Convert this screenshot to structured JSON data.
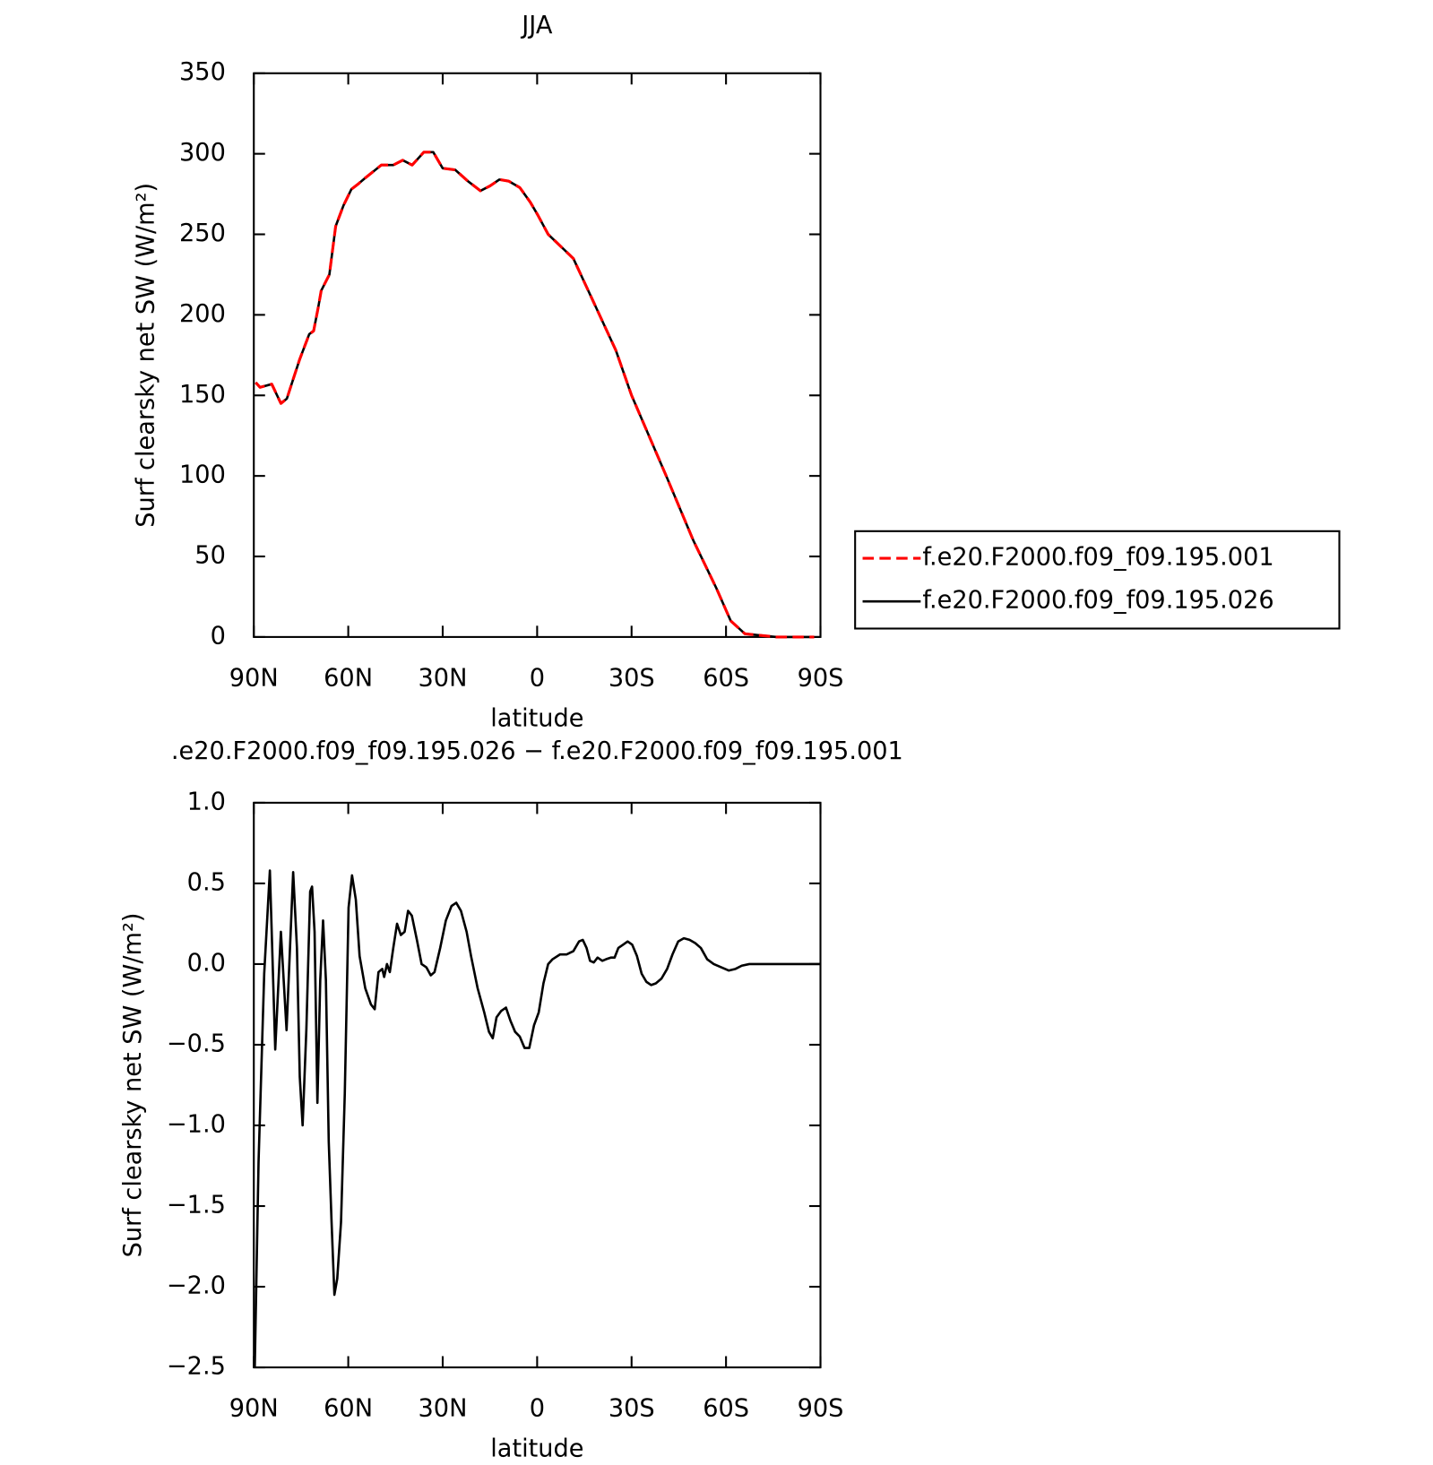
{
  "chart_data": [
    {
      "type": "line",
      "title": "JJA",
      "xlabel": "latitude",
      "ylabel": "Surf clearsky net SW (W/m²)",
      "xlim": [
        90,
        -90
      ],
      "xticks": [
        {
          "value": 90,
          "label": "90N"
        },
        {
          "value": 60,
          "label": "60N"
        },
        {
          "value": 30,
          "label": "30N"
        },
        0,
        {
          "value": -30,
          "label": "30S"
        },
        {
          "value": -60,
          "label": "60S"
        },
        {
          "value": -90,
          "label": "90S"
        }
      ],
      "ylim": [
        0,
        350
      ],
      "yticks": [
        0,
        50,
        100,
        150,
        200,
        250,
        300,
        350
      ],
      "legend": "right",
      "x": [
        89.4,
        88,
        84.3,
        82.6,
        81.4,
        79.5,
        77.5,
        75.5,
        72.4,
        71,
        69.5,
        68.6,
        66,
        64,
        61.5,
        59,
        57,
        54.6,
        49.5,
        45.7,
        42.7,
        39.7,
        36,
        33,
        30,
        26,
        22,
        18,
        15,
        12,
        9,
        5.5,
        2.2,
        -0.2,
        -3.5,
        -11.5,
        -19.8,
        -25,
        -30,
        -41,
        -49.6,
        -57,
        -61.5,
        -66,
        -76,
        -88
      ],
      "series": [
        {
          "name": "f.e20.F2000.f09_f09.195.001",
          "color": "#ff0000",
          "line_style": "dashed",
          "values": [
            158,
            155,
            157,
            150,
            145,
            148,
            160,
            172,
            188,
            190,
            205,
            215,
            225,
            255,
            268,
            278,
            281,
            285,
            293,
            293,
            296,
            293,
            301,
            301,
            291,
            290,
            283,
            277,
            280,
            284,
            283,
            279,
            270,
            262,
            250,
            235,
            200,
            178,
            150,
            100,
            60,
            30,
            10,
            2,
            0,
            0
          ]
        },
        {
          "name": "f.e20.F2000.f09_f09.195.026",
          "color": "#000000",
          "line_style": "solid",
          "values": [
            158,
            155,
            157,
            150,
            145,
            148,
            160,
            172,
            188,
            190,
            205,
            215,
            225,
            255,
            268,
            278,
            281,
            285,
            293,
            293,
            296,
            293,
            301,
            301,
            291,
            290,
            283,
            277,
            280,
            284,
            283,
            279,
            270,
            262,
            250,
            235,
            200,
            178,
            150,
            100,
            60,
            30,
            10,
            2,
            0,
            0
          ]
        }
      ]
    },
    {
      "type": "line",
      "title": ".e20.F2000.f09_f09.195.026 − f.e20.F2000.f09_f09.195.001",
      "xlabel": "latitude",
      "ylabel": "Surf clearsky net SW (W/m²)",
      "xlim": [
        90,
        -90
      ],
      "xticks": [
        {
          "value": 90,
          "label": "90N"
        },
        {
          "value": 60,
          "label": "60N"
        },
        {
          "value": 30,
          "label": "30N"
        },
        0,
        {
          "value": -30,
          "label": "30S"
        },
        {
          "value": -60,
          "label": "60S"
        },
        {
          "value": -90,
          "label": "90S"
        }
      ],
      "ylim": [
        -2.5,
        1.0
      ],
      "yticks": [
        {
          "value": -2.5,
          "label": "−2.5"
        },
        {
          "value": -2.0,
          "label": "−2.0"
        },
        {
          "value": -1.5,
          "label": "−1.5"
        },
        {
          "value": -1.0,
          "label": "−1.0"
        },
        {
          "value": -0.5,
          "label": "−0.5"
        },
        {
          "value": 0,
          "label": "0.0"
        },
        {
          "value": 0.5,
          "label": "0.5"
        },
        {
          "value": 1.0,
          "label": "1.0"
        }
      ],
      "x": [
        89.7,
        88.5,
        86.7,
        84.9,
        83.2,
        81.4,
        79.6,
        77.5,
        76.3,
        75.4,
        74.5,
        73.3,
        72.1,
        71.5,
        70.7,
        69.8,
        68.9,
        68,
        67.1,
        66.2,
        65.3,
        64.4,
        63.5,
        62.3,
        61.1,
        59.9,
        58.8,
        57.6,
        56.4,
        54.6,
        52.8,
        51.6,
        50.4,
        49.2,
        48.6,
        47.7,
        46.8,
        45.7,
        44.5,
        43.3,
        42.1,
        41,
        39.8,
        38.2,
        36.7,
        35.2,
        33.8,
        32.6,
        30.8,
        29,
        27.2,
        25.7,
        24.2,
        22.4,
        21,
        18.9,
        16.8,
        15.3,
        14.1,
        12.9,
        11.4,
        9.9,
        8.5,
        7,
        5.5,
        4,
        2.5,
        1,
        -0.5,
        -2,
        -3.5,
        -4.9,
        -7.3,
        -9.4,
        -11.5,
        -13.3,
        -14.5,
        -15.7,
        -16.8,
        -18,
        -19.2,
        -20.7,
        -21.9,
        -23.4,
        -24.6,
        -25.8,
        -27.3,
        -28.75,
        -30.2,
        -31.7,
        -33.2,
        -34.7,
        -36.2,
        -37.7,
        -39.5,
        -41.3,
        -43,
        -44.8,
        -46.6,
        -48.4,
        -50.2,
        -52,
        -54,
        -56.1,
        -58.5,
        -60.9,
        -63,
        -65,
        -67.4,
        -73.4,
        -82.3,
        -90
      ],
      "series": [
        {
          "color": "#000000",
          "line_style": "solid",
          "values": [
            -2.5,
            -1.23,
            -0.06,
            0.58,
            -0.53,
            0.2,
            -0.41,
            0.57,
            0.1,
            -0.7,
            -1.0,
            -0.4,
            0.45,
            0.48,
            0.2,
            -0.86,
            -0.1,
            0.27,
            -0.1,
            -1.1,
            -1.6,
            -2.05,
            -1.95,
            -1.6,
            -0.8,
            0.35,
            0.55,
            0.4,
            0.05,
            -0.15,
            -0.25,
            -0.28,
            -0.05,
            -0.03,
            -0.08,
            0.0,
            -0.05,
            0.1,
            0.25,
            0.18,
            0.2,
            0.33,
            0.3,
            0.15,
            0.0,
            -0.02,
            -0.07,
            -0.05,
            0.1,
            0.27,
            0.36,
            0.38,
            0.33,
            0.2,
            0.05,
            -0.15,
            -0.3,
            -0.42,
            -0.46,
            -0.33,
            -0.29,
            -0.27,
            -0.35,
            -0.42,
            -0.45,
            -0.52,
            -0.52,
            -0.38,
            -0.3,
            -0.12,
            0.0,
            0.03,
            0.06,
            0.06,
            0.08,
            0.14,
            0.15,
            0.1,
            0.02,
            0.01,
            0.04,
            0.02,
            0.03,
            0.04,
            0.04,
            0.1,
            0.12,
            0.14,
            0.12,
            0.05,
            -0.06,
            -0.11,
            -0.13,
            -0.12,
            -0.09,
            -0.03,
            0.06,
            0.14,
            0.16,
            0.15,
            0.13,
            0.1,
            0.03,
            0.0,
            -0.02,
            -0.04,
            -0.03,
            -0.01,
            0,
            0,
            0,
            0
          ]
        }
      ]
    }
  ]
}
